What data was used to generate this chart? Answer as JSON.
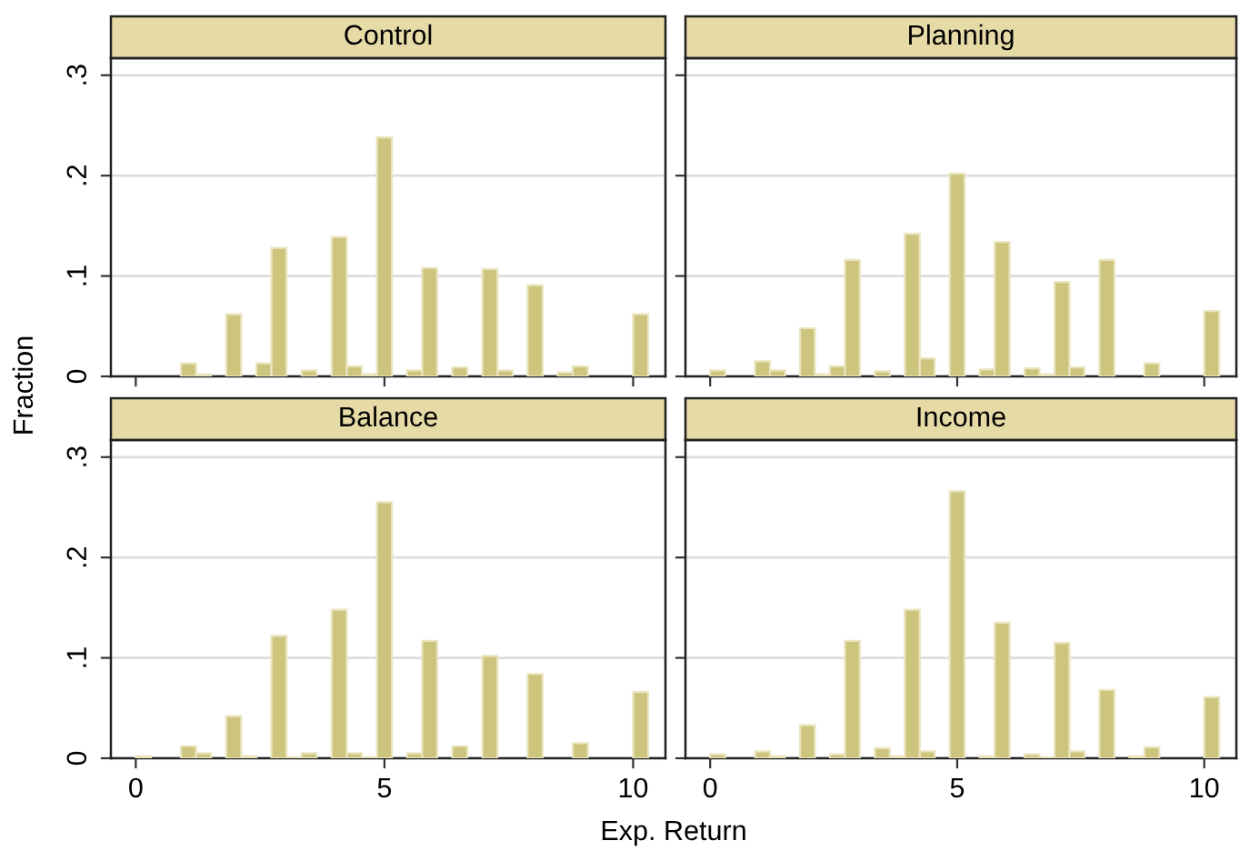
{
  "chart_data": [
    {
      "type": "histogram",
      "title": "Control",
      "ylabel": "Fraction",
      "color": "#cdc47e",
      "grid": "y",
      "tick_labels": "y",
      "bins": [
        0,
        0.303,
        0.6061,
        0.9091,
        1.2121,
        1.5152,
        1.8182,
        2.1212,
        2.4242,
        2.7273,
        3.0303,
        3.3333,
        3.6364,
        3.9394,
        4.2424,
        4.5455,
        4.8485,
        5.1515,
        5.4545,
        5.7576,
        6.0606,
        6.3636,
        6.6667,
        6.9697,
        7.2727,
        7.5758,
        7.8788,
        8.1818,
        8.4848,
        8.7879,
        9.0909,
        9.3939,
        9.697,
        10.0,
        10.303
      ],
      "values": [
        0,
        0,
        0,
        0.013,
        0.002,
        0,
        0.062,
        0,
        0.013,
        0.128,
        0,
        0.006,
        0,
        0.139,
        0.01,
        0.002,
        0.238,
        0,
        0.006,
        0.108,
        0,
        0.009,
        0,
        0.107,
        0.006,
        0,
        0.091,
        0,
        0.004,
        0.01,
        0,
        0,
        0,
        0.062
      ],
      "xlim": [
        -0.5,
        10.65
      ],
      "xticks": [
        0,
        5,
        10
      ],
      "ylim": [
        0,
        0.317
      ],
      "yticks": [
        0,
        {
          "value": 0.1,
          "label": ".1"
        },
        {
          "value": 0.2,
          "label": ".2"
        },
        {
          "value": 0.3,
          "label": ".3"
        }
      ]
    },
    {
      "type": "histogram",
      "title": "Planning",
      "color": "#cdc47e",
      "grid": "y",
      "tick_labels": false,
      "bins": [
        0,
        0.303,
        0.6061,
        0.9091,
        1.2121,
        1.5152,
        1.8182,
        2.1212,
        2.4242,
        2.7273,
        3.0303,
        3.3333,
        3.6364,
        3.9394,
        4.2424,
        4.5455,
        4.8485,
        5.1515,
        5.4545,
        5.7576,
        6.0606,
        6.3636,
        6.6667,
        6.9697,
        7.2727,
        7.5758,
        7.8788,
        8.1818,
        8.4848,
        8.7879,
        9.0909,
        9.3939,
        9.697,
        10.0,
        10.303
      ],
      "values": [
        0.006,
        0,
        0,
        0.015,
        0.006,
        0,
        0.048,
        0.002,
        0.01,
        0.116,
        0,
        0.005,
        0,
        0.142,
        0.018,
        0,
        0.202,
        0,
        0.007,
        0.134,
        0,
        0.008,
        0.002,
        0.094,
        0.009,
        0,
        0.116,
        0,
        0,
        0.013,
        0,
        0,
        0,
        0.065
      ],
      "xlim": [
        -0.5,
        10.65
      ],
      "xticks": [
        0,
        5,
        10
      ],
      "ylim": [
        0,
        0.317
      ],
      "yticks": [
        0,
        0.1,
        0.2,
        0.3
      ]
    },
    {
      "type": "histogram",
      "title": "Balance",
      "xlabel": "Exp. Return",
      "color": "#cdc47e",
      "grid": "y",
      "bins": [
        0,
        0.303,
        0.6061,
        0.9091,
        1.2121,
        1.5152,
        1.8182,
        2.1212,
        2.4242,
        2.7273,
        3.0303,
        3.3333,
        3.6364,
        3.9394,
        4.2424,
        4.5455,
        4.8485,
        5.1515,
        5.4545,
        5.7576,
        6.0606,
        6.3636,
        6.6667,
        6.9697,
        7.2727,
        7.5758,
        7.8788,
        8.1818,
        8.4848,
        8.7879,
        9.0909,
        9.3939,
        9.697,
        10.0,
        10.303
      ],
      "values": [
        0.002,
        0,
        0,
        0.012,
        0.005,
        0,
        0.042,
        0.002,
        0,
        0.122,
        0.001,
        0.005,
        0,
        0.148,
        0.005,
        0.001,
        0.255,
        0,
        0.005,
        0.117,
        0,
        0.012,
        0,
        0.102,
        0,
        0,
        0.084,
        0,
        0,
        0.015,
        0,
        0,
        0,
        0.066
      ],
      "xlim": [
        -0.5,
        10.65
      ],
      "xticks": [
        0,
        5,
        10
      ],
      "ylim": [
        0,
        0.317
      ],
      "yticks": [
        0,
        {
          "value": 0.1,
          "label": ".1"
        },
        {
          "value": 0.2,
          "label": ".2"
        },
        {
          "value": 0.3,
          "label": ".3"
        }
      ]
    },
    {
      "type": "histogram",
      "title": "Income",
      "color": "#cdc47e",
      "grid": "y",
      "tick_labels": "x",
      "bins": [
        0,
        0.303,
        0.6061,
        0.9091,
        1.2121,
        1.5152,
        1.8182,
        2.1212,
        2.4242,
        2.7273,
        3.0303,
        3.3333,
        3.6364,
        3.9394,
        4.2424,
        4.5455,
        4.8485,
        5.1515,
        5.4545,
        5.7576,
        6.0606,
        6.3636,
        6.6667,
        6.9697,
        7.2727,
        7.5758,
        7.8788,
        8.1818,
        8.4848,
        8.7879,
        9.0909,
        9.3939,
        9.697,
        10.0,
        10.303
      ],
      "values": [
        0.004,
        0,
        0,
        0.007,
        0.002,
        0,
        0.033,
        0,
        0.004,
        0.117,
        0,
        0.01,
        0.002,
        0.148,
        0.007,
        0,
        0.266,
        0,
        0.002,
        0.135,
        0,
        0.004,
        0.001,
        0.115,
        0.007,
        0,
        0.068,
        0,
        0.002,
        0.011,
        0,
        0,
        0,
        0.061
      ],
      "xlim": [
        -0.5,
        10.65
      ],
      "xticks": [
        0,
        5,
        10
      ],
      "ylim": [
        0,
        0.317
      ],
      "yticks": [
        0,
        0.1,
        0.2,
        0.3
      ]
    }
  ]
}
